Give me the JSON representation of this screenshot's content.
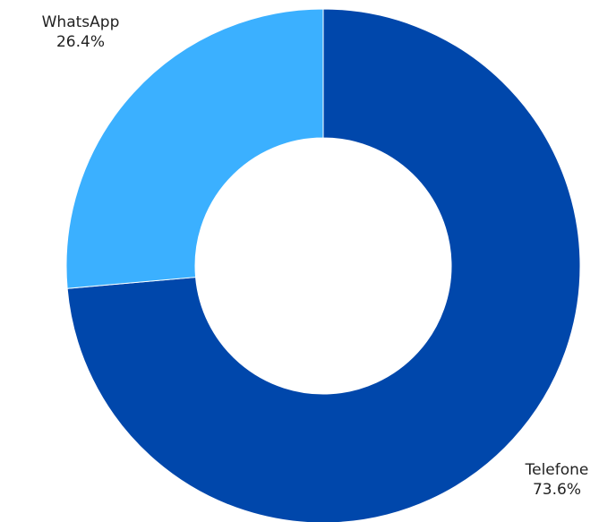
{
  "chart_data": {
    "type": "pie",
    "title": "",
    "donut": true,
    "slices": [
      {
        "label": "Telefone",
        "value": 73.6,
        "display": "73.6%",
        "color": "#0047ab"
      },
      {
        "label": "WhatsApp",
        "value": 26.4,
        "display": "26.4%",
        "color": "#3bb0ff"
      }
    ]
  }
}
